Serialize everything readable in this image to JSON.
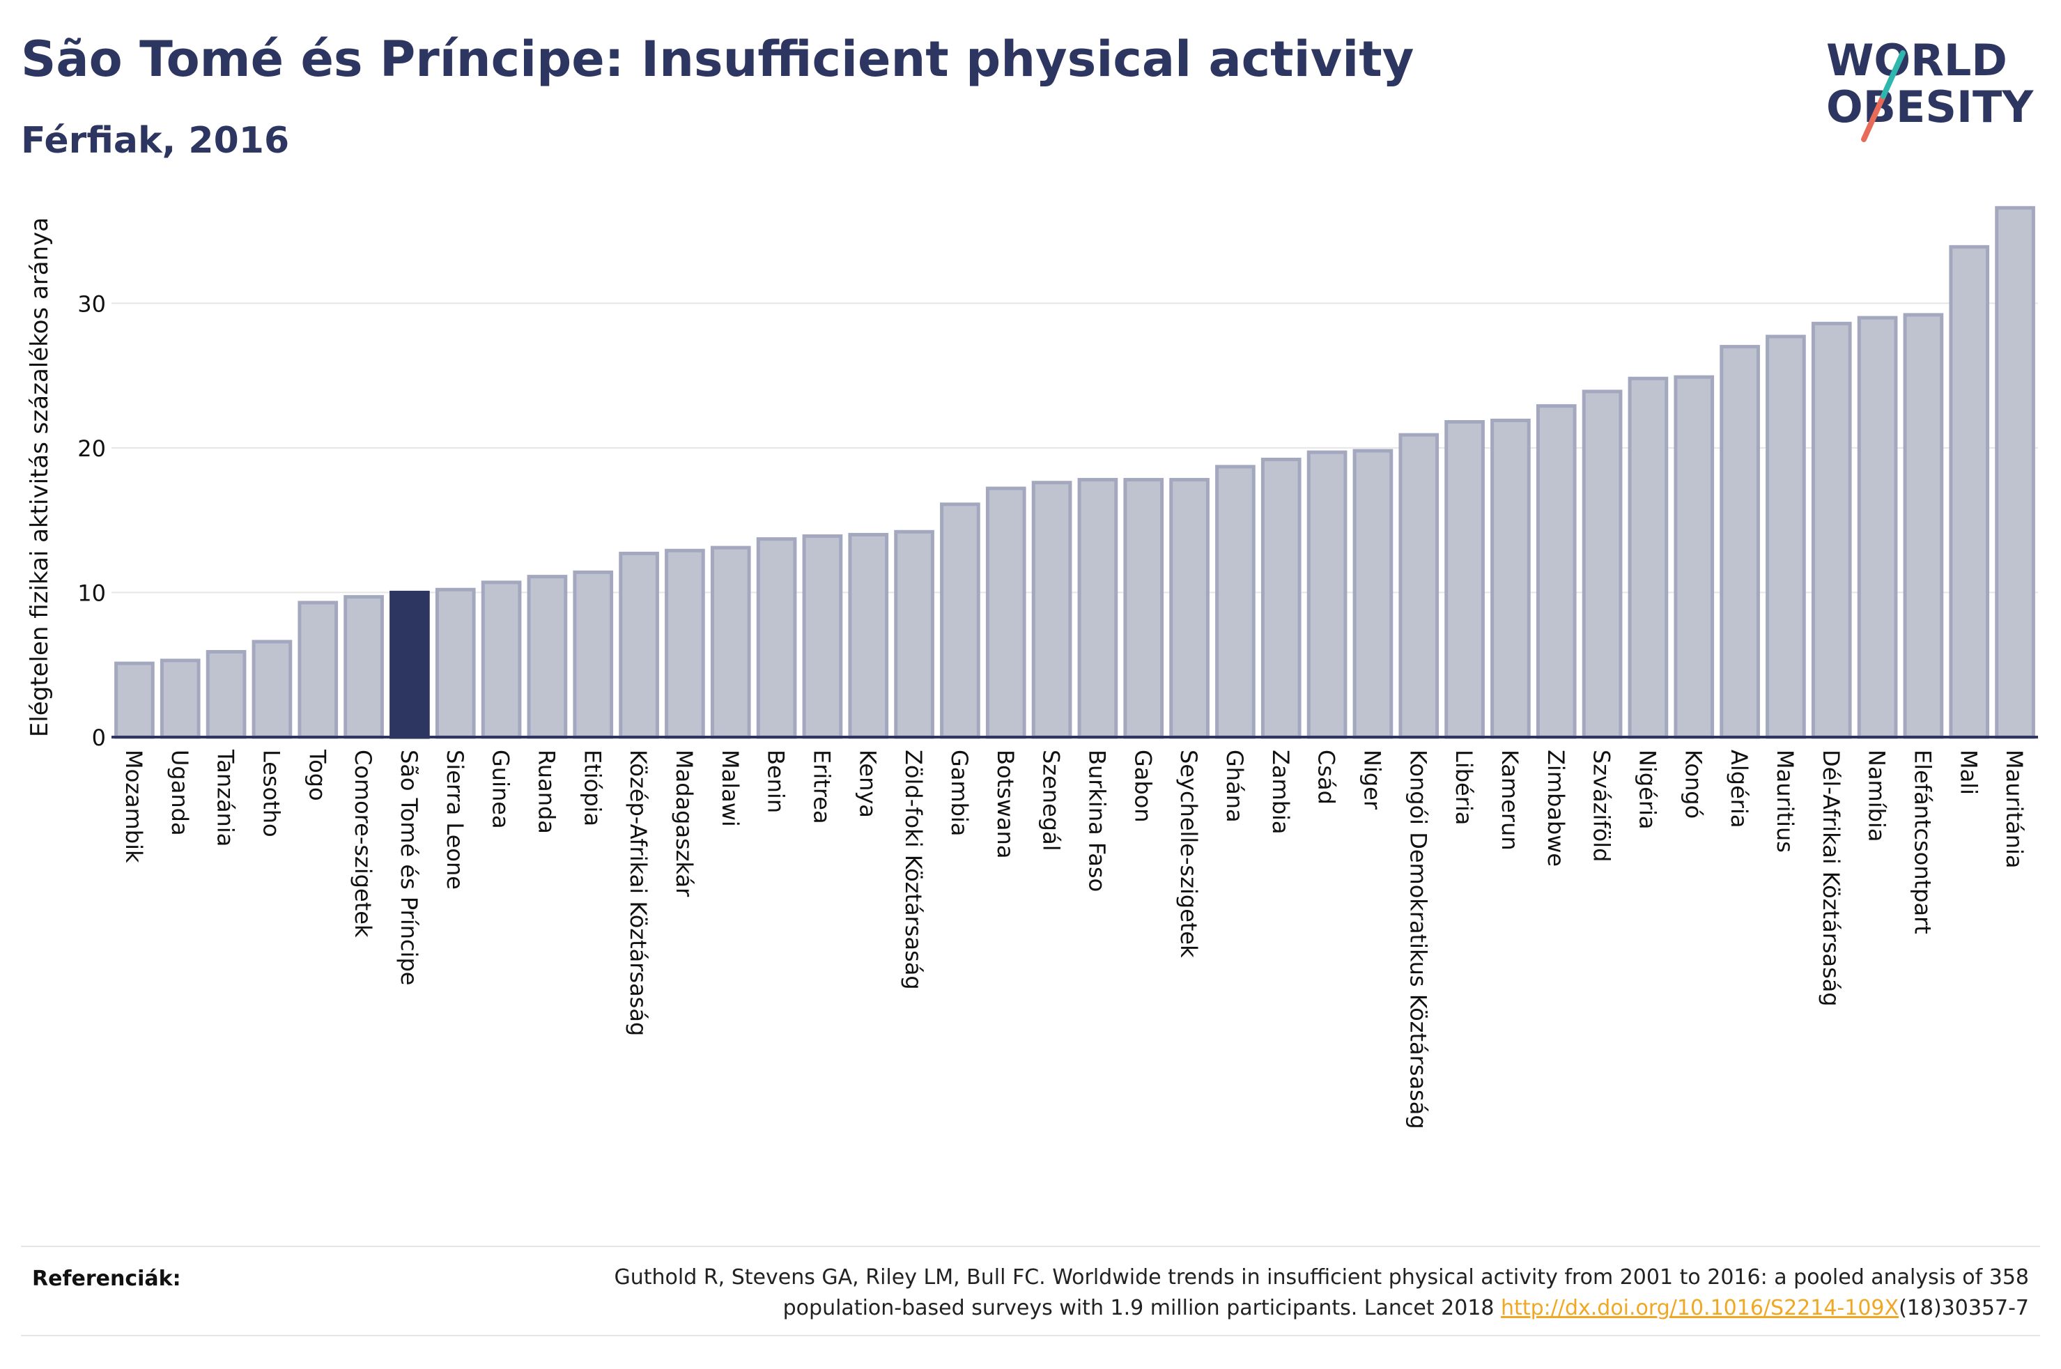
{
  "header": {
    "title": "São Tomé és Príncipe: Insufficient physical activity",
    "subtitle": "Férfiak, 2016"
  },
  "logo": {
    "line1": "WORLD",
    "line2": "OBESITY"
  },
  "colors": {
    "highlight": "#2d3561",
    "bar": "#bfc3d0",
    "bar_border": "#a3a8bf",
    "text": "#2d3561",
    "grid": "#e6e6e6",
    "link": "#f0a824"
  },
  "chart_data": {
    "type": "bar",
    "title": "São Tomé és Príncipe: Insufficient physical activity",
    "subtitle": "Férfiak, 2016",
    "xlabel": "",
    "ylabel": "Elégtelen fizikai aktivitás százalékos aránya",
    "ylim": [
      0,
      37
    ],
    "yticks": [
      0,
      10,
      20,
      30
    ],
    "grid": true,
    "highlight": "São Tomé és Príncipe",
    "categories": [
      "Mozambik",
      "Uganda",
      "Tanzánia",
      "Lesotho",
      "Togo",
      "Comore-szigetek",
      "São Tomé és Príncipe",
      "Sierra Leone",
      "Guinea",
      "Ruanda",
      "Etiópia",
      "Közép-Afrikai Köztársaság",
      "Madagaszkár",
      "Malawi",
      "Benin",
      "Eritrea",
      "Kenya",
      "Zöld-foki Köztársaság",
      "Gambia",
      "Botswana",
      "Szenegál",
      "Burkina Faso",
      "Gabon",
      "Seychelle-szigetek",
      "Ghána",
      "Zambia",
      "Csád",
      "Niger",
      "Kongói Demokratikus Köztársaság",
      "Libéria",
      "Kamerun",
      "Zimbabwe",
      "Szváziföld",
      "Nigéria",
      "Kongó",
      "Algéria",
      "Mauritius",
      "Dél-Afrikai Köztársaság",
      "Namíbia",
      "Elefántcsontpart",
      "Mali",
      "Mauritánia"
    ],
    "values": [
      5.1,
      5.3,
      5.9,
      6.6,
      9.3,
      9.7,
      10.0,
      10.2,
      10.7,
      11.1,
      11.4,
      12.7,
      12.9,
      13.1,
      13.7,
      13.9,
      14.0,
      14.2,
      16.1,
      17.2,
      17.6,
      17.8,
      17.8,
      17.8,
      18.7,
      19.2,
      19.7,
      19.8,
      20.9,
      21.8,
      21.9,
      22.9,
      23.9,
      24.8,
      24.9,
      27.0,
      27.7,
      28.6,
      29.0,
      29.2,
      33.9,
      36.6
    ]
  },
  "footer": {
    "label": "Referenciák:",
    "text": "Guthold R, Stevens GA, Riley LM, Bull FC. Worldwide trends in insufficient physical activity from 2001 to 2016: a pooled analysis of 358 population-based surveys with 1.9 million participants. Lancet 2018 ",
    "link": "http://dx.doi.org/10.1016/S2214-109X",
    "suffix": "(18)30357-7"
  }
}
